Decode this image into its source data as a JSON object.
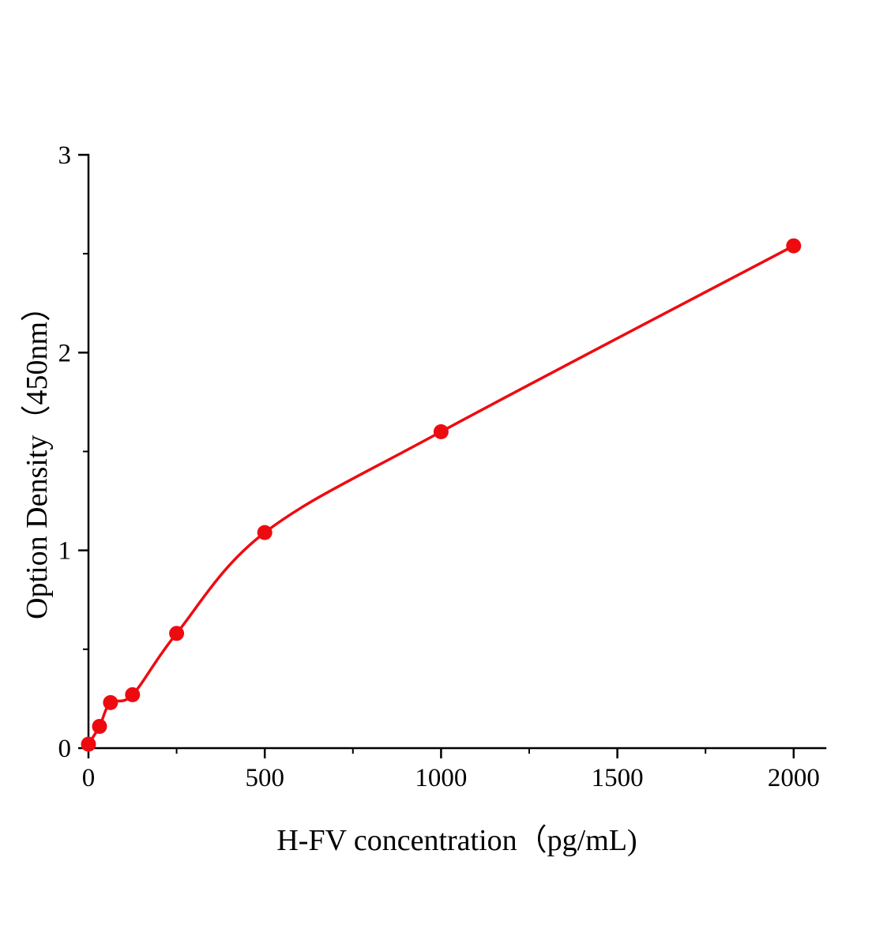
{
  "chart_data": {
    "type": "scatter",
    "title": "",
    "xlabel": "H-FV concentration（pg/mL)",
    "ylabel": "Option Density（450nm）",
    "xlim": [
      0,
      2090
    ],
    "ylim": [
      0,
      3
    ],
    "x_major_ticks": [
      0,
      500,
      1000,
      1500,
      2000
    ],
    "x_tick_labels": [
      "0",
      "500",
      "1000",
      "1500",
      "2000"
    ],
    "x_minor_ticks": [
      250,
      750,
      1250,
      1750
    ],
    "y_major_ticks": [
      0,
      1,
      2,
      3
    ],
    "y_tick_labels": [
      "0",
      "1",
      "2",
      "3"
    ],
    "y_minor_ticks": [
      0.5,
      1.5,
      2.5
    ],
    "grid": false,
    "legend": null,
    "line_color": "#ee0b10",
    "point_color": "#ee0b10",
    "axis_color": "#000000",
    "points": [
      {
        "x": 0,
        "y": 0.02
      },
      {
        "x": 31.25,
        "y": 0.11
      },
      {
        "x": 62.5,
        "y": 0.23
      },
      {
        "x": 125,
        "y": 0.27
      },
      {
        "x": 250,
        "y": 0.58
      },
      {
        "x": 500,
        "y": 1.09
      },
      {
        "x": 1000,
        "y": 1.6
      },
      {
        "x": 2000,
        "y": 2.54
      }
    ]
  }
}
